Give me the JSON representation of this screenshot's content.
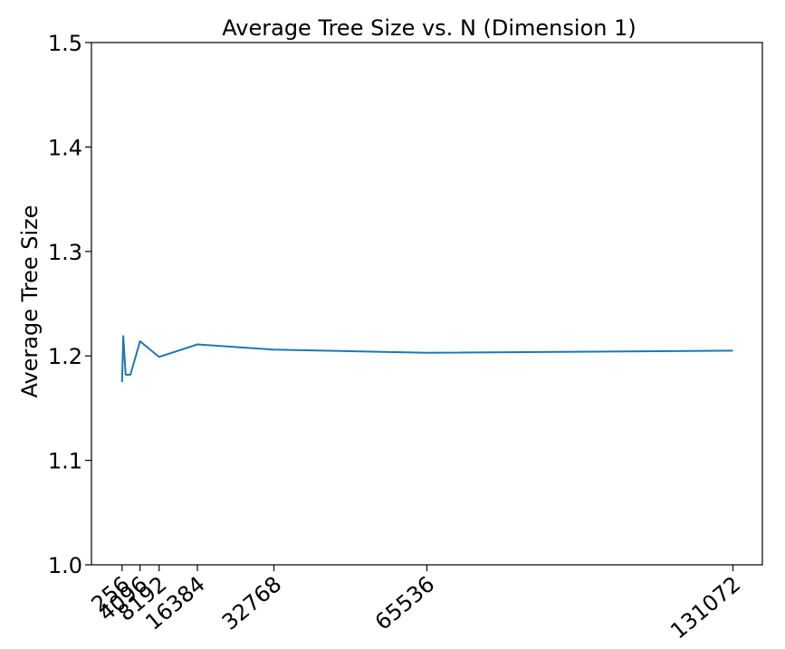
{
  "chart_data": {
    "type": "line",
    "title": "Average Tree Size vs. N (Dimension 1)",
    "xlabel": "",
    "ylabel": "Average Tree Size",
    "xlim": [
      -6300,
      137372
    ],
    "ylim": [
      1.0,
      1.5
    ],
    "grid": false,
    "x_ticks": [
      256,
      4096,
      8192,
      16384,
      32768,
      65536,
      131072
    ],
    "y_ticks": [
      "1.0",
      "1.1",
      "1.2",
      "1.3",
      "1.4",
      "1.5"
    ],
    "series": [
      {
        "color": "#1f77b4",
        "x": [
          256,
          512,
          1024,
          2048,
          4096,
          8192,
          16384,
          32768,
          65536,
          131072
        ],
        "y": [
          1.175,
          1.219,
          1.182,
          1.182,
          1.214,
          1.199,
          1.211,
          1.206,
          1.203,
          1.205
        ]
      }
    ]
  }
}
